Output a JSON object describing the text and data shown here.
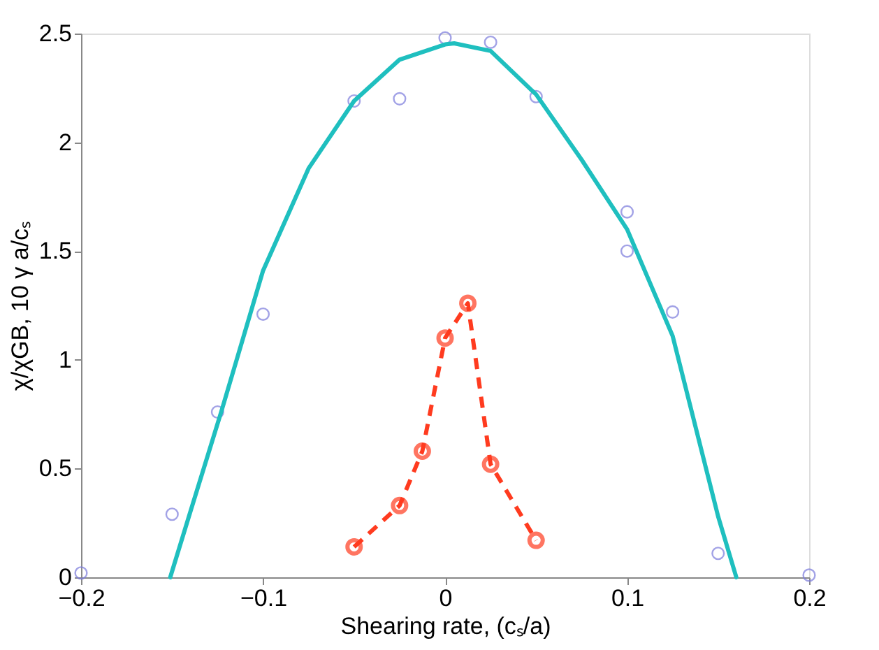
{
  "chart_data": {
    "type": "scatter",
    "xlabel": "Shearing rate, (cₛ/a)",
    "ylabel": "χ/χGB,   10 γ a/cₛ",
    "xlim": [
      -0.2,
      0.2
    ],
    "xticks": [
      -0.2,
      -0.1,
      0,
      0.1,
      0.2
    ],
    "ylim": [
      0,
      2.5
    ],
    "yticks": [
      0,
      0.5,
      1,
      1.5,
      2,
      2.5
    ],
    "grid": false,
    "series": [
      {
        "marker": "circle",
        "color": "#7b7bdc",
        "x": [
          -0.2,
          -0.15,
          -0.125,
          -0.1,
          -0.05,
          -0.025,
          0,
          0.025,
          0.05,
          0.1,
          0.1,
          0.125,
          0.15,
          0.2
        ],
        "values": [
          0.02,
          0.29,
          0.76,
          1.21,
          2.19,
          2.2,
          2.48,
          2.46,
          2.21,
          1.68,
          1.5,
          1.22,
          0.11,
          0.01
        ]
      },
      {
        "type": "line",
        "marker": "none",
        "line_style": "solid",
        "color": "#1fbfbf",
        "x": [
          -0.151,
          -0.14,
          -0.123,
          -0.1,
          -0.075,
          -0.05,
          -0.025,
          0,
          0.005,
          0.025,
          0.05,
          0.075,
          0.1,
          0.125,
          0.15,
          0.16
        ],
        "values": [
          0,
          0.3,
          0.76,
          1.41,
          1.88,
          2.19,
          2.38,
          2.45,
          2.455,
          2.42,
          2.22,
          1.92,
          1.6,
          1.11,
          0.28,
          0
        ]
      },
      {
        "type": "line",
        "marker": "circle",
        "line_style": "dashed",
        "color": "#ff3b1f",
        "x": [
          -0.05,
          -0.025,
          -0.0125,
          0,
          0.0125,
          0.025,
          0.05
        ],
        "values": [
          0.14,
          0.33,
          0.58,
          1.1,
          1.26,
          0.52,
          0.17
        ]
      }
    ]
  }
}
